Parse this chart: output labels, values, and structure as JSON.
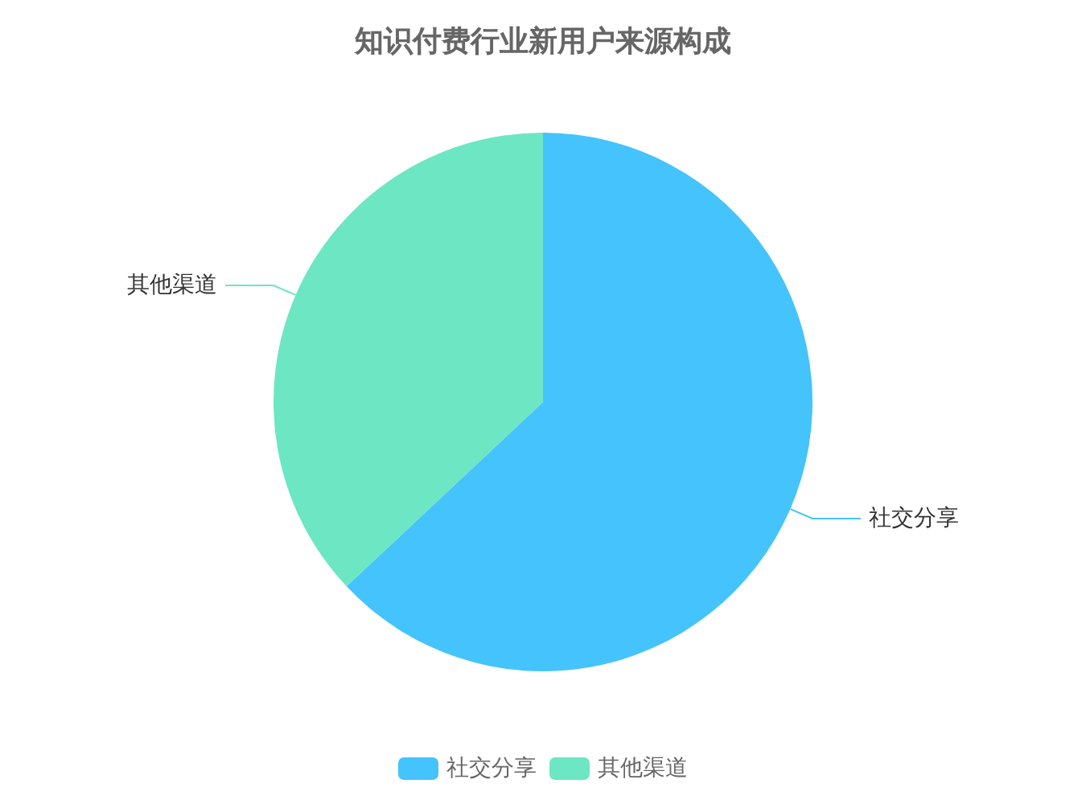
{
  "chart_data": {
    "type": "pie",
    "title": "知识付费行业新用户来源构成",
    "categories": [
      "社交分享",
      "其他渠道"
    ],
    "values": [
      63,
      37
    ],
    "colors": [
      "#45c3fd",
      "#6ce6c3"
    ],
    "legend": "bottom"
  }
}
